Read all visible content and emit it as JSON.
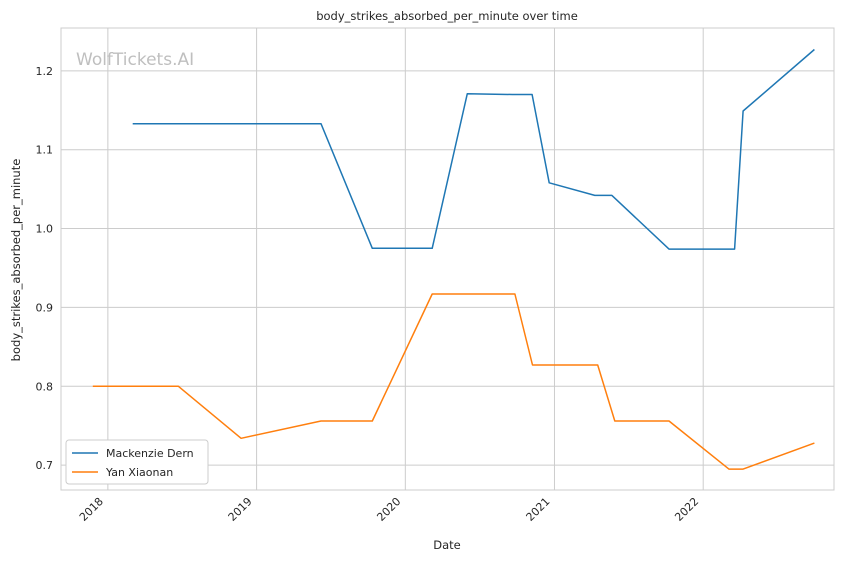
{
  "chart_data": {
    "type": "line",
    "title": "body_strikes_absorbed_per_minute over time",
    "xlabel": "Date",
    "ylabel": "body_strikes_absorbed_per_minute",
    "watermark": "WolfTickets.AI",
    "xlim": [
      "2017-09-08",
      "2022-11-18"
    ],
    "ylim": [
      0.6685,
      1.2543
    ],
    "x_ticks": [
      "2018",
      "2019",
      "2020",
      "2021",
      "2022"
    ],
    "y_ticks": [
      "0.7",
      "0.8",
      "0.9",
      "1.0",
      "1.1",
      "1.2"
    ],
    "grid": true,
    "legend_position": "lower-left",
    "series": [
      {
        "name": "Mackenzie Dern",
        "color": "#1f77b4",
        "points": [
          [
            "2018-03-03",
            1.133
          ],
          [
            "2019-06-08",
            1.133
          ],
          [
            "2019-10-12",
            0.975
          ],
          [
            "2020-03-07",
            0.975
          ],
          [
            "2020-06-01",
            1.171
          ],
          [
            "2020-09-19",
            1.17
          ],
          [
            "2020-11-07",
            1.17
          ],
          [
            "2020-12-19",
            1.058
          ],
          [
            "2021-04-10",
            1.042
          ],
          [
            "2021-05-22",
            1.042
          ],
          [
            "2021-10-09",
            0.974
          ],
          [
            "2022-03-19",
            0.974
          ],
          [
            "2022-04-09",
            1.149
          ],
          [
            "2022-10-01",
            1.227
          ]
        ]
      },
      {
        "name": "Yan Xiaonan",
        "color": "#ff7f0e",
        "points": [
          [
            "2017-11-25",
            0.8
          ],
          [
            "2018-06-23",
            0.8
          ],
          [
            "2018-11-24",
            0.734
          ],
          [
            "2019-06-08",
            0.756
          ],
          [
            "2019-10-12",
            0.756
          ],
          [
            "2020-03-07",
            0.917
          ],
          [
            "2020-09-26",
            0.917
          ],
          [
            "2020-11-08",
            0.827
          ],
          [
            "2021-04-17",
            0.827
          ],
          [
            "2021-05-29",
            0.756
          ],
          [
            "2021-10-09",
            0.756
          ],
          [
            "2022-03-05",
            0.695
          ],
          [
            "2022-04-09",
            0.695
          ],
          [
            "2022-10-01",
            0.728
          ]
        ]
      }
    ]
  }
}
